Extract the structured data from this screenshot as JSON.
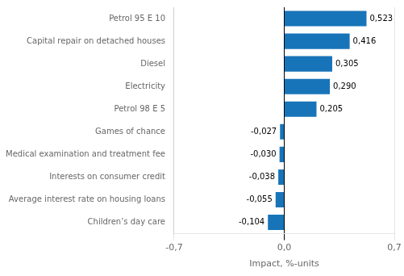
{
  "chart_data": {
    "type": "bar",
    "orientation": "horizontal",
    "categories": [
      "Children’s day care",
      "Average interest rate on housing loans",
      "Interests on consumer credit",
      "Medical examination and treatment fee",
      "Games of chance",
      "Petrol 98 E 5",
      "Electricity",
      "Diesel",
      "Capital repair on detached houses",
      "Petrol 95 E 10"
    ],
    "values": [
      -0.104,
      -0.055,
      -0.038,
      -0.03,
      -0.027,
      0.205,
      0.29,
      0.305,
      0.416,
      0.523
    ],
    "value_labels": [
      "-0,104",
      "-0,055",
      "-0,038",
      "-0,030",
      "-0,027",
      "0,205",
      "0,290",
      "0,305",
      "0,416",
      "0,523"
    ],
    "data_labels": true,
    "color": "#1874b8",
    "xlabel": "Impact, %-units",
    "xlim": [
      -0.7,
      0.7
    ],
    "xticks": [
      {
        "value": -0.7,
        "label": "-0,7"
      },
      {
        "value": 0,
        "label": "0,0"
      },
      {
        "value": 0.7,
        "label": "0,7"
      }
    ],
    "grid": true
  }
}
